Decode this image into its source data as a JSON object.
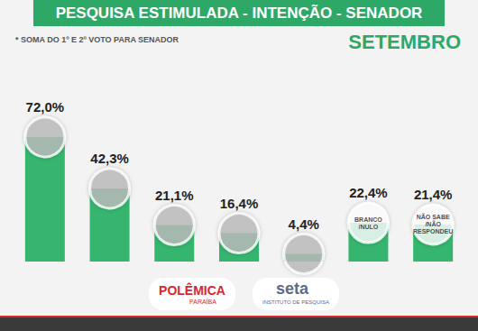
{
  "chart_data": {
    "type": "bar",
    "title": "PESQUISA ESTIMULADA - INTENÇÃO - SENADOR",
    "subtitle": "* SOMA DO 1º E 2º VOTO PARA SENADOR",
    "annotations": [
      "SETEMBRO",
      "POLÊMICA",
      "PARAÍBA",
      "seta",
      "INSTITUTO DE PESQUISA"
    ],
    "categories": [
      null,
      null,
      null,
      null,
      null,
      "BRANCO /NULO",
      "NÃO SABE /NÃO RESPONDEU"
    ],
    "values": [
      72.0,
      42.3,
      21.1,
      16.4,
      4.4,
      22.4,
      21.4
    ],
    "value_labels": [
      "72,0%",
      "42,3%",
      "21,1%",
      "16,4%",
      "4,4%",
      "22,4%",
      "21,4%"
    ],
    "color": "#35b56e",
    "data_labels": true,
    "tick_labels": false,
    "grid": false
  }
}
